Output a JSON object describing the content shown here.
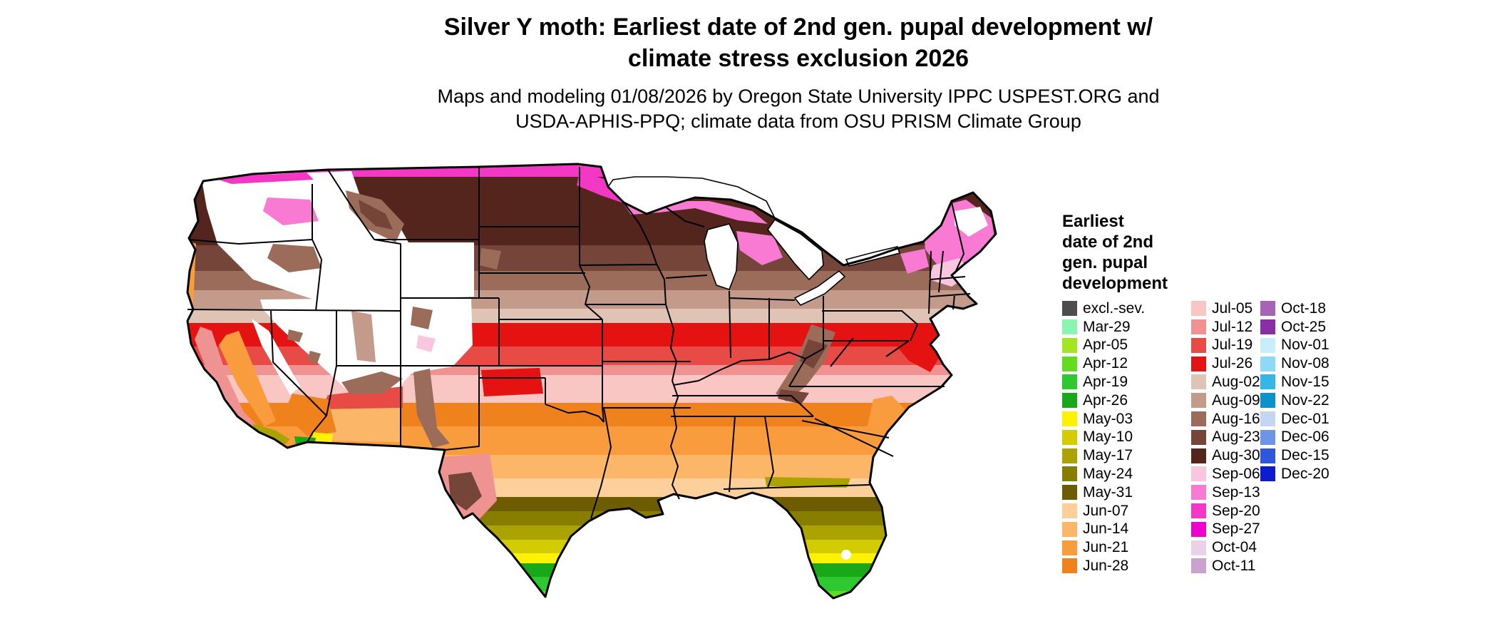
{
  "title": {
    "line1": "Silver Y moth: Earliest date of 2nd gen. pupal development w/",
    "line2": "climate stress exclusion 2026"
  },
  "subtitle": {
    "line1": "Maps and modeling 01/08/2026 by Oregon State University IPPC USPEST.ORG and",
    "line2": "USDA-APHIS-PPQ; climate data from OSU PRISM Climate Group"
  },
  "map": {
    "description": "choropleth raster map of the contiguous United States with state borders",
    "background_color": "#ffffff",
    "border_color": "#000000"
  },
  "legend": {
    "title_lines": [
      "Earliest",
      "date of 2nd",
      "gen. pupal",
      "development"
    ],
    "columns": [
      [
        {
          "label": "excl.-sev.",
          "color": "#4d4d4d"
        },
        {
          "label": "Mar-29",
          "color": "#8af5b0"
        },
        {
          "label": "Apr-05",
          "color": "#a2e521"
        },
        {
          "label": "Apr-12",
          "color": "#64db1f"
        },
        {
          "label": "Apr-19",
          "color": "#2ec930"
        },
        {
          "label": "Apr-26",
          "color": "#18a818"
        },
        {
          "label": "May-03",
          "color": "#fef200"
        },
        {
          "label": "May-10",
          "color": "#d2cc00"
        },
        {
          "label": "May-17",
          "color": "#aba400"
        },
        {
          "label": "May-24",
          "color": "#877e00"
        },
        {
          "label": "May-31",
          "color": "#6e5c00"
        },
        {
          "label": "Jun-07",
          "color": "#fccf9b"
        },
        {
          "label": "Jun-14",
          "color": "#fbb668"
        },
        {
          "label": "Jun-21",
          "color": "#f99c3d"
        },
        {
          "label": "Jun-28",
          "color": "#f0821e"
        }
      ],
      [
        {
          "label": "Jul-05",
          "color": "#f9c6c3"
        },
        {
          "label": "Jul-12",
          "color": "#ef9292"
        },
        {
          "label": "Jul-19",
          "color": "#e84a45"
        },
        {
          "label": "Jul-26",
          "color": "#e51212"
        },
        {
          "label": "Aug-02",
          "color": "#dfc3b4"
        },
        {
          "label": "Aug-09",
          "color": "#c49a8a"
        },
        {
          "label": "Aug-16",
          "color": "#9c6c5a"
        },
        {
          "label": "Aug-23",
          "color": "#744538"
        },
        {
          "label": "Aug-30",
          "color": "#54251c"
        },
        {
          "label": "Sep-06",
          "color": "#f9c6e0"
        },
        {
          "label": "Sep-13",
          "color": "#f87ad2"
        },
        {
          "label": "Sep-20",
          "color": "#f338c6"
        },
        {
          "label": "Sep-27",
          "color": "#ef00ce"
        },
        {
          "label": "Oct-04",
          "color": "#e8d2e8"
        },
        {
          "label": "Oct-11",
          "color": "#cba2ce"
        }
      ],
      [
        {
          "label": "Oct-18",
          "color": "#a763ba"
        },
        {
          "label": "Oct-25",
          "color": "#8a2ea6"
        },
        {
          "label": "Nov-01",
          "color": "#c8eefb"
        },
        {
          "label": "Nov-08",
          "color": "#8ed9f6"
        },
        {
          "label": "Nov-15",
          "color": "#36b5e8"
        },
        {
          "label": "Nov-22",
          "color": "#0a92cb"
        },
        {
          "label": "Dec-01",
          "color": "#c5d6f1"
        },
        {
          "label": "Dec-06",
          "color": "#6d95e7"
        },
        {
          "label": "Dec-15",
          "color": "#2f57da"
        },
        {
          "label": "Dec-20",
          "color": "#0c1dce"
        }
      ]
    ]
  }
}
